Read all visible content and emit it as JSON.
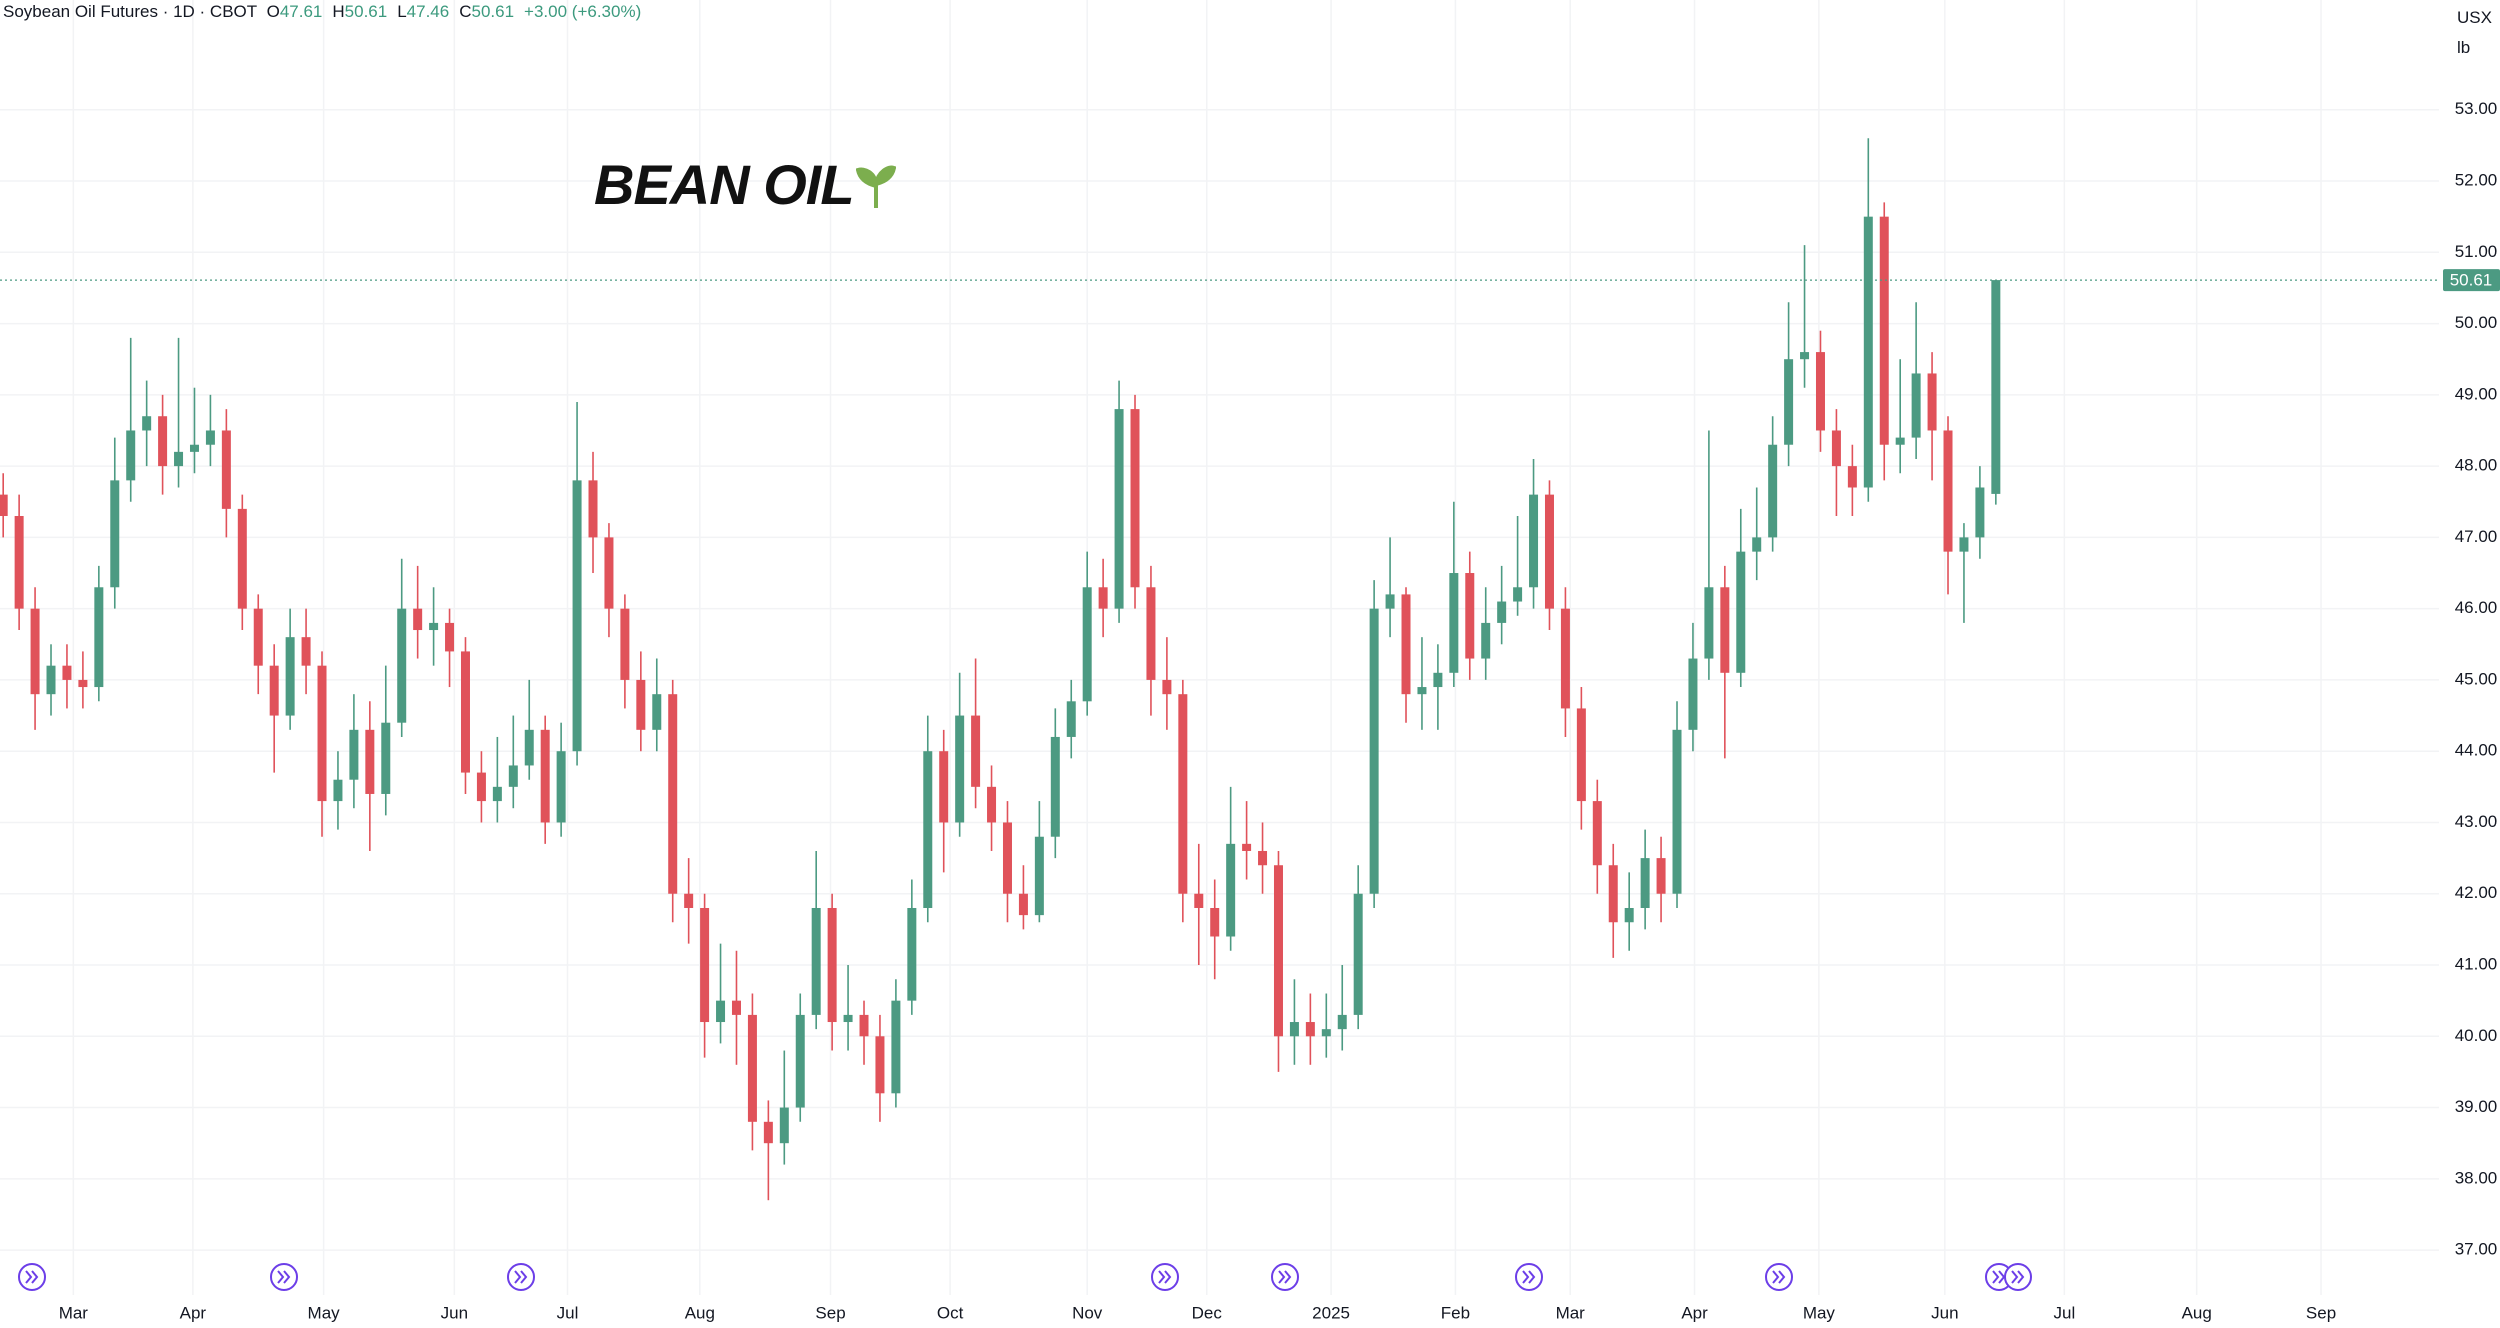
{
  "chart_data": {
    "type": "candlestick",
    "title": "Soybean Oil Futures · 1D · CBOT",
    "ohlc_labels": [
      "O",
      "H",
      "L",
      "C"
    ],
    "change_text": "+3.00 (+6.30%)",
    "units": [
      "USX",
      "lb"
    ],
    "watermark": "BEAN OIL",
    "up_color": "#4c9a82",
    "down_color": "#e0525a",
    "grid": true,
    "open": [
      47.6,
      47.3,
      46.0,
      44.8,
      45.2,
      45.0,
      44.9,
      46.3,
      47.8,
      48.5,
      48.7,
      48.0,
      48.2,
      48.3,
      48.5,
      47.4,
      46.0,
      45.2,
      44.5,
      45.6,
      45.2,
      43.3,
      43.6,
      44.3,
      43.4,
      44.4,
      46.0,
      45.7,
      45.8,
      45.4,
      43.7,
      43.3,
      43.5,
      43.8,
      44.3,
      43.0,
      44.0,
      47.8,
      47.0,
      46.0,
      45.0,
      44.3,
      44.8,
      42.0,
      41.8,
      40.2,
      40.5,
      40.3,
      38.8,
      38.5,
      39.0,
      40.3,
      41.8,
      40.2,
      40.3,
      40.0,
      39.2,
      40.5,
      41.8,
      44.0,
      43.0,
      44.5,
      43.5,
      43.0,
      42.0,
      41.7,
      42.8,
      44.2,
      44.7,
      46.3,
      46.0,
      48.8,
      46.3,
      45.0,
      44.8,
      42.0,
      41.8,
      41.4,
      42.7,
      42.6,
      42.4,
      40.0,
      40.2,
      40.0,
      40.1,
      40.3,
      42.0,
      46.0,
      46.2,
      44.8,
      44.9,
      45.1,
      46.5,
      45.3,
      45.8,
      46.1,
      46.3,
      47.6,
      46.0,
      44.6,
      43.3,
      42.4,
      41.6,
      41.8,
      42.5,
      42.0,
      44.3,
      45.3,
      46.3,
      45.1,
      46.8,
      47.0,
      48.3,
      49.5,
      49.6,
      48.5,
      48.0,
      47.7,
      51.5,
      48.3,
      48.4,
      49.3,
      48.5,
      46.8,
      47.0,
      47.61
    ],
    "high": [
      47.9,
      47.6,
      46.3,
      45.5,
      45.5,
      45.4,
      46.6,
      48.4,
      49.8,
      49.2,
      49.0,
      49.8,
      49.1,
      49.0,
      48.8,
      47.6,
      46.2,
      45.5,
      46.0,
      46.0,
      45.4,
      44.0,
      44.8,
      44.7,
      45.2,
      46.7,
      46.6,
      46.3,
      46.0,
      45.6,
      44.0,
      44.2,
      44.5,
      45.0,
      44.5,
      44.4,
      48.9,
      48.2,
      47.2,
      46.2,
      45.4,
      45.3,
      45.0,
      42.5,
      42.0,
      41.3,
      41.2,
      40.6,
      39.1,
      39.8,
      40.6,
      42.6,
      42.0,
      41.0,
      40.5,
      40.3,
      40.8,
      42.2,
      44.5,
      44.3,
      45.1,
      45.3,
      43.8,
      43.3,
      42.4,
      43.3,
      44.6,
      45.0,
      46.8,
      46.7,
      49.2,
      49.0,
      46.6,
      45.6,
      45.0,
      42.7,
      42.2,
      43.5,
      43.3,
      43.0,
      42.6,
      40.8,
      40.6,
      40.6,
      41.0,
      42.4,
      46.4,
      47.0,
      46.3,
      45.6,
      45.5,
      47.5,
      46.8,
      46.3,
      46.6,
      47.3,
      48.1,
      47.8,
      46.3,
      44.9,
      43.6,
      42.7,
      42.3,
      42.9,
      42.8,
      44.7,
      45.8,
      48.5,
      46.6,
      47.4,
      47.7,
      48.7,
      50.3,
      51.1,
      49.9,
      48.8,
      48.3,
      52.6,
      51.7,
      49.5,
      50.3,
      49.6,
      48.7,
      47.2,
      48.0,
      50.61
    ],
    "low": [
      47.0,
      45.7,
      44.3,
      44.5,
      44.6,
      44.6,
      44.7,
      46.0,
      47.5,
      48.0,
      47.6,
      47.7,
      47.9,
      48.0,
      47.0,
      45.7,
      44.8,
      43.7,
      44.3,
      44.8,
      42.8,
      42.9,
      43.2,
      42.6,
      43.1,
      44.2,
      45.3,
      45.2,
      44.9,
      43.4,
      43.0,
      43.0,
      43.2,
      43.6,
      42.7,
      42.8,
      43.8,
      46.5,
      45.6,
      44.6,
      44.0,
      44.0,
      41.6,
      41.3,
      39.7,
      39.9,
      39.6,
      38.4,
      37.7,
      38.2,
      38.8,
      40.1,
      39.8,
      39.8,
      39.6,
      38.8,
      39.0,
      40.3,
      41.6,
      42.3,
      42.8,
      43.2,
      42.6,
      41.6,
      41.5,
      41.6,
      42.5,
      43.9,
      44.5,
      45.6,
      45.8,
      46.0,
      44.5,
      44.3,
      41.6,
      41.0,
      40.8,
      41.2,
      42.2,
      42.0,
      39.5,
      39.6,
      39.6,
      39.7,
      39.8,
      40.1,
      41.8,
      45.6,
      44.4,
      44.3,
      44.3,
      44.9,
      45.0,
      45.0,
      45.5,
      45.9,
      46.0,
      45.7,
      44.2,
      42.9,
      42.0,
      41.1,
      41.2,
      41.5,
      41.6,
      41.8,
      44.0,
      45.0,
      43.9,
      44.9,
      46.4,
      46.8,
      48.0,
      49.1,
      48.2,
      47.3,
      47.3,
      47.5,
      47.8,
      47.9,
      48.1,
      47.8,
      46.2,
      45.8,
      46.7,
      47.46
    ],
    "close": [
      47.3,
      46.0,
      44.8,
      45.2,
      45.0,
      44.9,
      46.3,
      47.8,
      48.5,
      48.7,
      48.0,
      48.2,
      48.3,
      48.5,
      47.4,
      46.0,
      45.2,
      44.5,
      45.6,
      45.2,
      43.3,
      43.6,
      44.3,
      43.4,
      44.4,
      46.0,
      45.7,
      45.8,
      45.4,
      43.7,
      43.3,
      43.5,
      43.8,
      44.3,
      43.0,
      44.0,
      47.8,
      47.0,
      46.0,
      45.0,
      44.3,
      44.8,
      42.0,
      41.8,
      40.2,
      40.5,
      40.3,
      38.8,
      38.5,
      39.0,
      40.3,
      41.8,
      40.2,
      40.3,
      40.0,
      39.2,
      40.5,
      41.8,
      44.0,
      43.0,
      44.5,
      43.5,
      43.0,
      42.0,
      41.7,
      42.8,
      44.2,
      44.7,
      46.3,
      46.0,
      48.8,
      46.3,
      45.0,
      44.8,
      42.0,
      41.8,
      41.4,
      42.7,
      42.6,
      42.4,
      40.0,
      40.2,
      40.0,
      40.1,
      40.3,
      42.0,
      46.0,
      46.2,
      44.8,
      44.9,
      45.1,
      46.5,
      45.3,
      45.8,
      46.1,
      46.3,
      47.6,
      46.0,
      44.6,
      43.3,
      42.4,
      41.6,
      41.8,
      42.5,
      42.0,
      44.3,
      45.3,
      46.3,
      45.1,
      46.8,
      47.0,
      48.3,
      49.5,
      49.6,
      48.5,
      48.0,
      47.7,
      51.5,
      48.3,
      48.4,
      49.3,
      48.5,
      46.8,
      47.0,
      47.7,
      50.61
    ],
    "xlim": [
      -0.2,
      152.8
    ],
    "xticks": [
      {
        "value": 4.4,
        "label": "Mar"
      },
      {
        "value": 11.9,
        "label": "Apr"
      },
      {
        "value": 20.1,
        "label": "May"
      },
      {
        "value": 28.3,
        "label": "Jun"
      },
      {
        "value": 35.4,
        "label": "Jul"
      },
      {
        "value": 43.7,
        "label": "Aug"
      },
      {
        "value": 51.9,
        "label": "Sep"
      },
      {
        "value": 59.4,
        "label": "Oct"
      },
      {
        "value": 68.0,
        "label": "Nov"
      },
      {
        "value": 75.5,
        "label": "Dec"
      },
      {
        "value": 83.3,
        "label": "2025"
      },
      {
        "value": 91.1,
        "label": "Feb"
      },
      {
        "value": 98.3,
        "label": "Mar"
      },
      {
        "value": 106.1,
        "label": "Apr"
      },
      {
        "value": 113.9,
        "label": "May"
      },
      {
        "value": 121.8,
        "label": "Jun"
      },
      {
        "value": 129.3,
        "label": "Jul"
      },
      {
        "value": 137.6,
        "label": "Aug"
      },
      {
        "value": 145.4,
        "label": "Sep"
      }
    ],
    "ylim": [
      36.37,
      54.54
    ],
    "yticks": [
      {
        "value": 37,
        "label": "37.00"
      },
      {
        "value": 38,
        "label": "38.00"
      },
      {
        "value": 39,
        "label": "39.00"
      },
      {
        "value": 40,
        "label": "40.00"
      },
      {
        "value": 41,
        "label": "41.00"
      },
      {
        "value": 42,
        "label": "42.00"
      },
      {
        "value": 43,
        "label": "43.00"
      },
      {
        "value": 44,
        "label": "44.00"
      },
      {
        "value": 45,
        "label": "45.00"
      },
      {
        "value": 46,
        "label": "46.00"
      },
      {
        "value": 47,
        "label": "47.00"
      },
      {
        "value": 48,
        "label": "48.00"
      },
      {
        "value": 49,
        "label": "49.00"
      },
      {
        "value": 50,
        "label": "50.00"
      },
      {
        "value": 51,
        "label": "51.00"
      },
      {
        "value": 52,
        "label": "52.00"
      },
      {
        "value": 53,
        "label": "53.00"
      }
    ]
  }
}
